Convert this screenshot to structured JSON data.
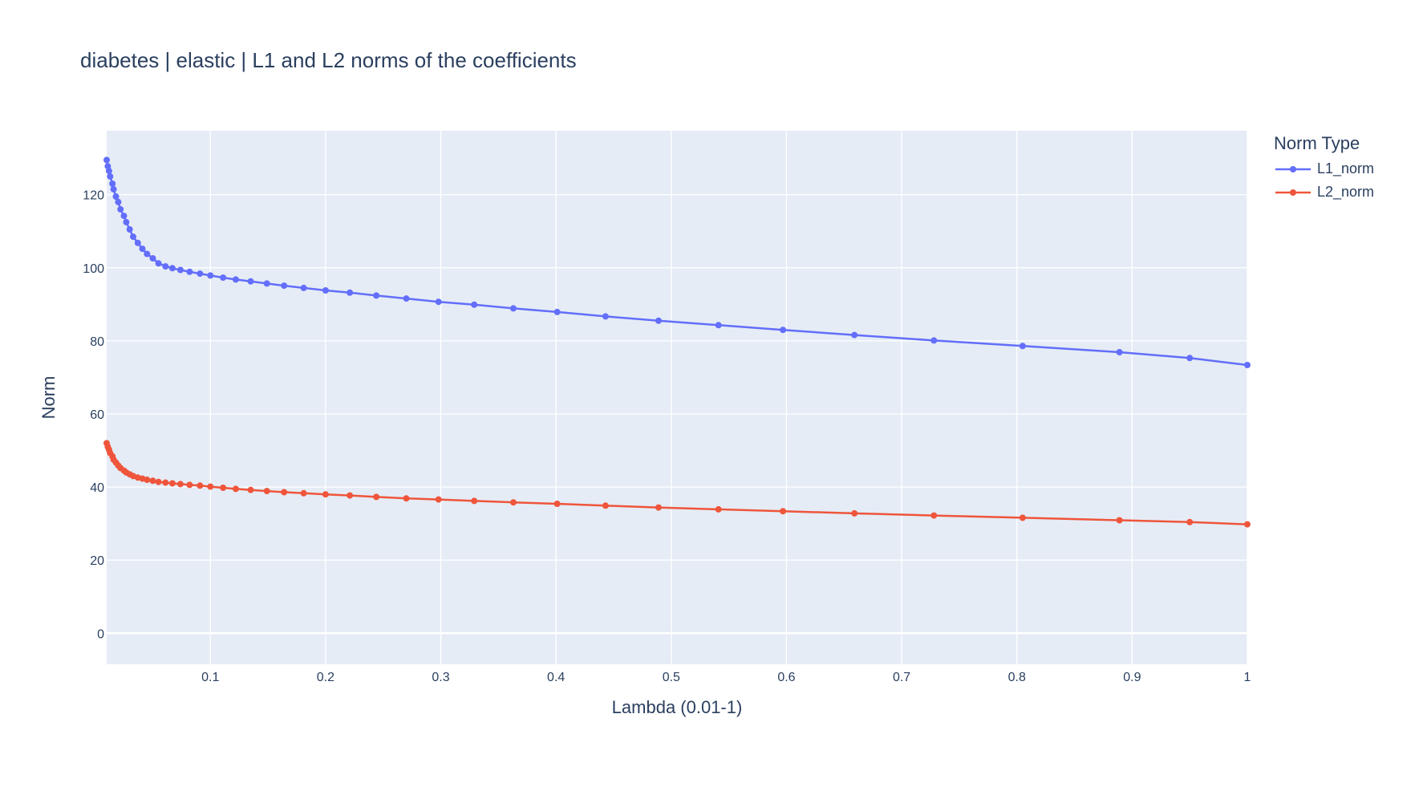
{
  "chart_data": {
    "type": "line",
    "title": "diabetes | elastic | L1 and L2 norms of the coefficients",
    "xlabel": "Lambda (0.01-1)",
    "ylabel": "Norm",
    "xlim": [
      0.01,
      1.0
    ],
    "ylim": [
      -8.5,
      137.5
    ],
    "grid": true,
    "legend_position": "top-right",
    "legend_title": "Norm Type",
    "x_ticks": [
      {
        "value": 0.1,
        "label": "0.1"
      },
      {
        "value": 0.2,
        "label": "0.2"
      },
      {
        "value": 0.3,
        "label": "0.3"
      },
      {
        "value": 0.4,
        "label": "0.4"
      },
      {
        "value": 0.5,
        "label": "0.5"
      },
      {
        "value": 0.6,
        "label": "0.6"
      },
      {
        "value": 0.7,
        "label": "0.7"
      },
      {
        "value": 0.8,
        "label": "0.8"
      },
      {
        "value": 0.9,
        "label": "0.9"
      },
      {
        "value": 1.0,
        "label": "1"
      }
    ],
    "y_ticks": [
      {
        "value": 0,
        "label": "0"
      },
      {
        "value": 20,
        "label": "20"
      },
      {
        "value": 40,
        "label": "40"
      },
      {
        "value": 60,
        "label": "60"
      },
      {
        "value": 80,
        "label": "80"
      },
      {
        "value": 100,
        "label": "100"
      },
      {
        "value": 120,
        "label": "120"
      }
    ],
    "x": [
      0.01,
      0.011,
      0.012,
      0.013,
      0.015,
      0.016,
      0.018,
      0.02,
      0.022,
      0.025,
      0.027,
      0.03,
      0.033,
      0.037,
      0.041,
      0.045,
      0.05,
      0.055,
      0.061,
      0.067,
      0.074,
      0.082,
      0.091,
      0.1,
      0.111,
      0.122,
      0.135,
      0.149,
      0.164,
      0.181,
      0.2,
      0.221,
      0.244,
      0.27,
      0.298,
      0.329,
      0.363,
      0.401,
      0.443,
      0.489,
      0.541,
      0.597,
      0.659,
      0.728,
      0.805,
      0.889,
      0.95,
      1.0
    ],
    "series": [
      {
        "name": "L1_norm",
        "color": "#636efa",
        "values": [
          129.5,
          127.8,
          126.5,
          125.0,
          123.0,
          121.5,
          119.5,
          118.0,
          116.0,
          114.2,
          112.5,
          110.5,
          108.5,
          106.8,
          105.2,
          103.8,
          102.6,
          101.2,
          100.4,
          99.9,
          99.4,
          98.9,
          98.4,
          97.9,
          97.3,
          96.8,
          96.3,
          95.7,
          95.1,
          94.5,
          93.8,
          93.2,
          92.4,
          91.6,
          90.7,
          89.9,
          88.9,
          87.9,
          86.7,
          85.5,
          84.3,
          83.0,
          81.6,
          80.1,
          78.6,
          76.9,
          75.3,
          73.4
        ]
      },
      {
        "name": "L2_norm",
        "color": "#ef553b",
        "values": [
          52.0,
          51.0,
          50.2,
          49.3,
          48.4,
          47.5,
          46.7,
          45.9,
          45.2,
          44.5,
          44.0,
          43.5,
          43.0,
          42.6,
          42.3,
          42.0,
          41.7,
          41.4,
          41.2,
          41.0,
          40.8,
          40.6,
          40.4,
          40.1,
          39.8,
          39.5,
          39.2,
          38.9,
          38.6,
          38.3,
          38.0,
          37.7,
          37.3,
          36.9,
          36.6,
          36.2,
          35.8,
          35.4,
          34.9,
          34.4,
          33.9,
          33.4,
          32.8,
          32.2,
          31.6,
          30.9,
          30.4,
          29.8
        ]
      }
    ]
  }
}
